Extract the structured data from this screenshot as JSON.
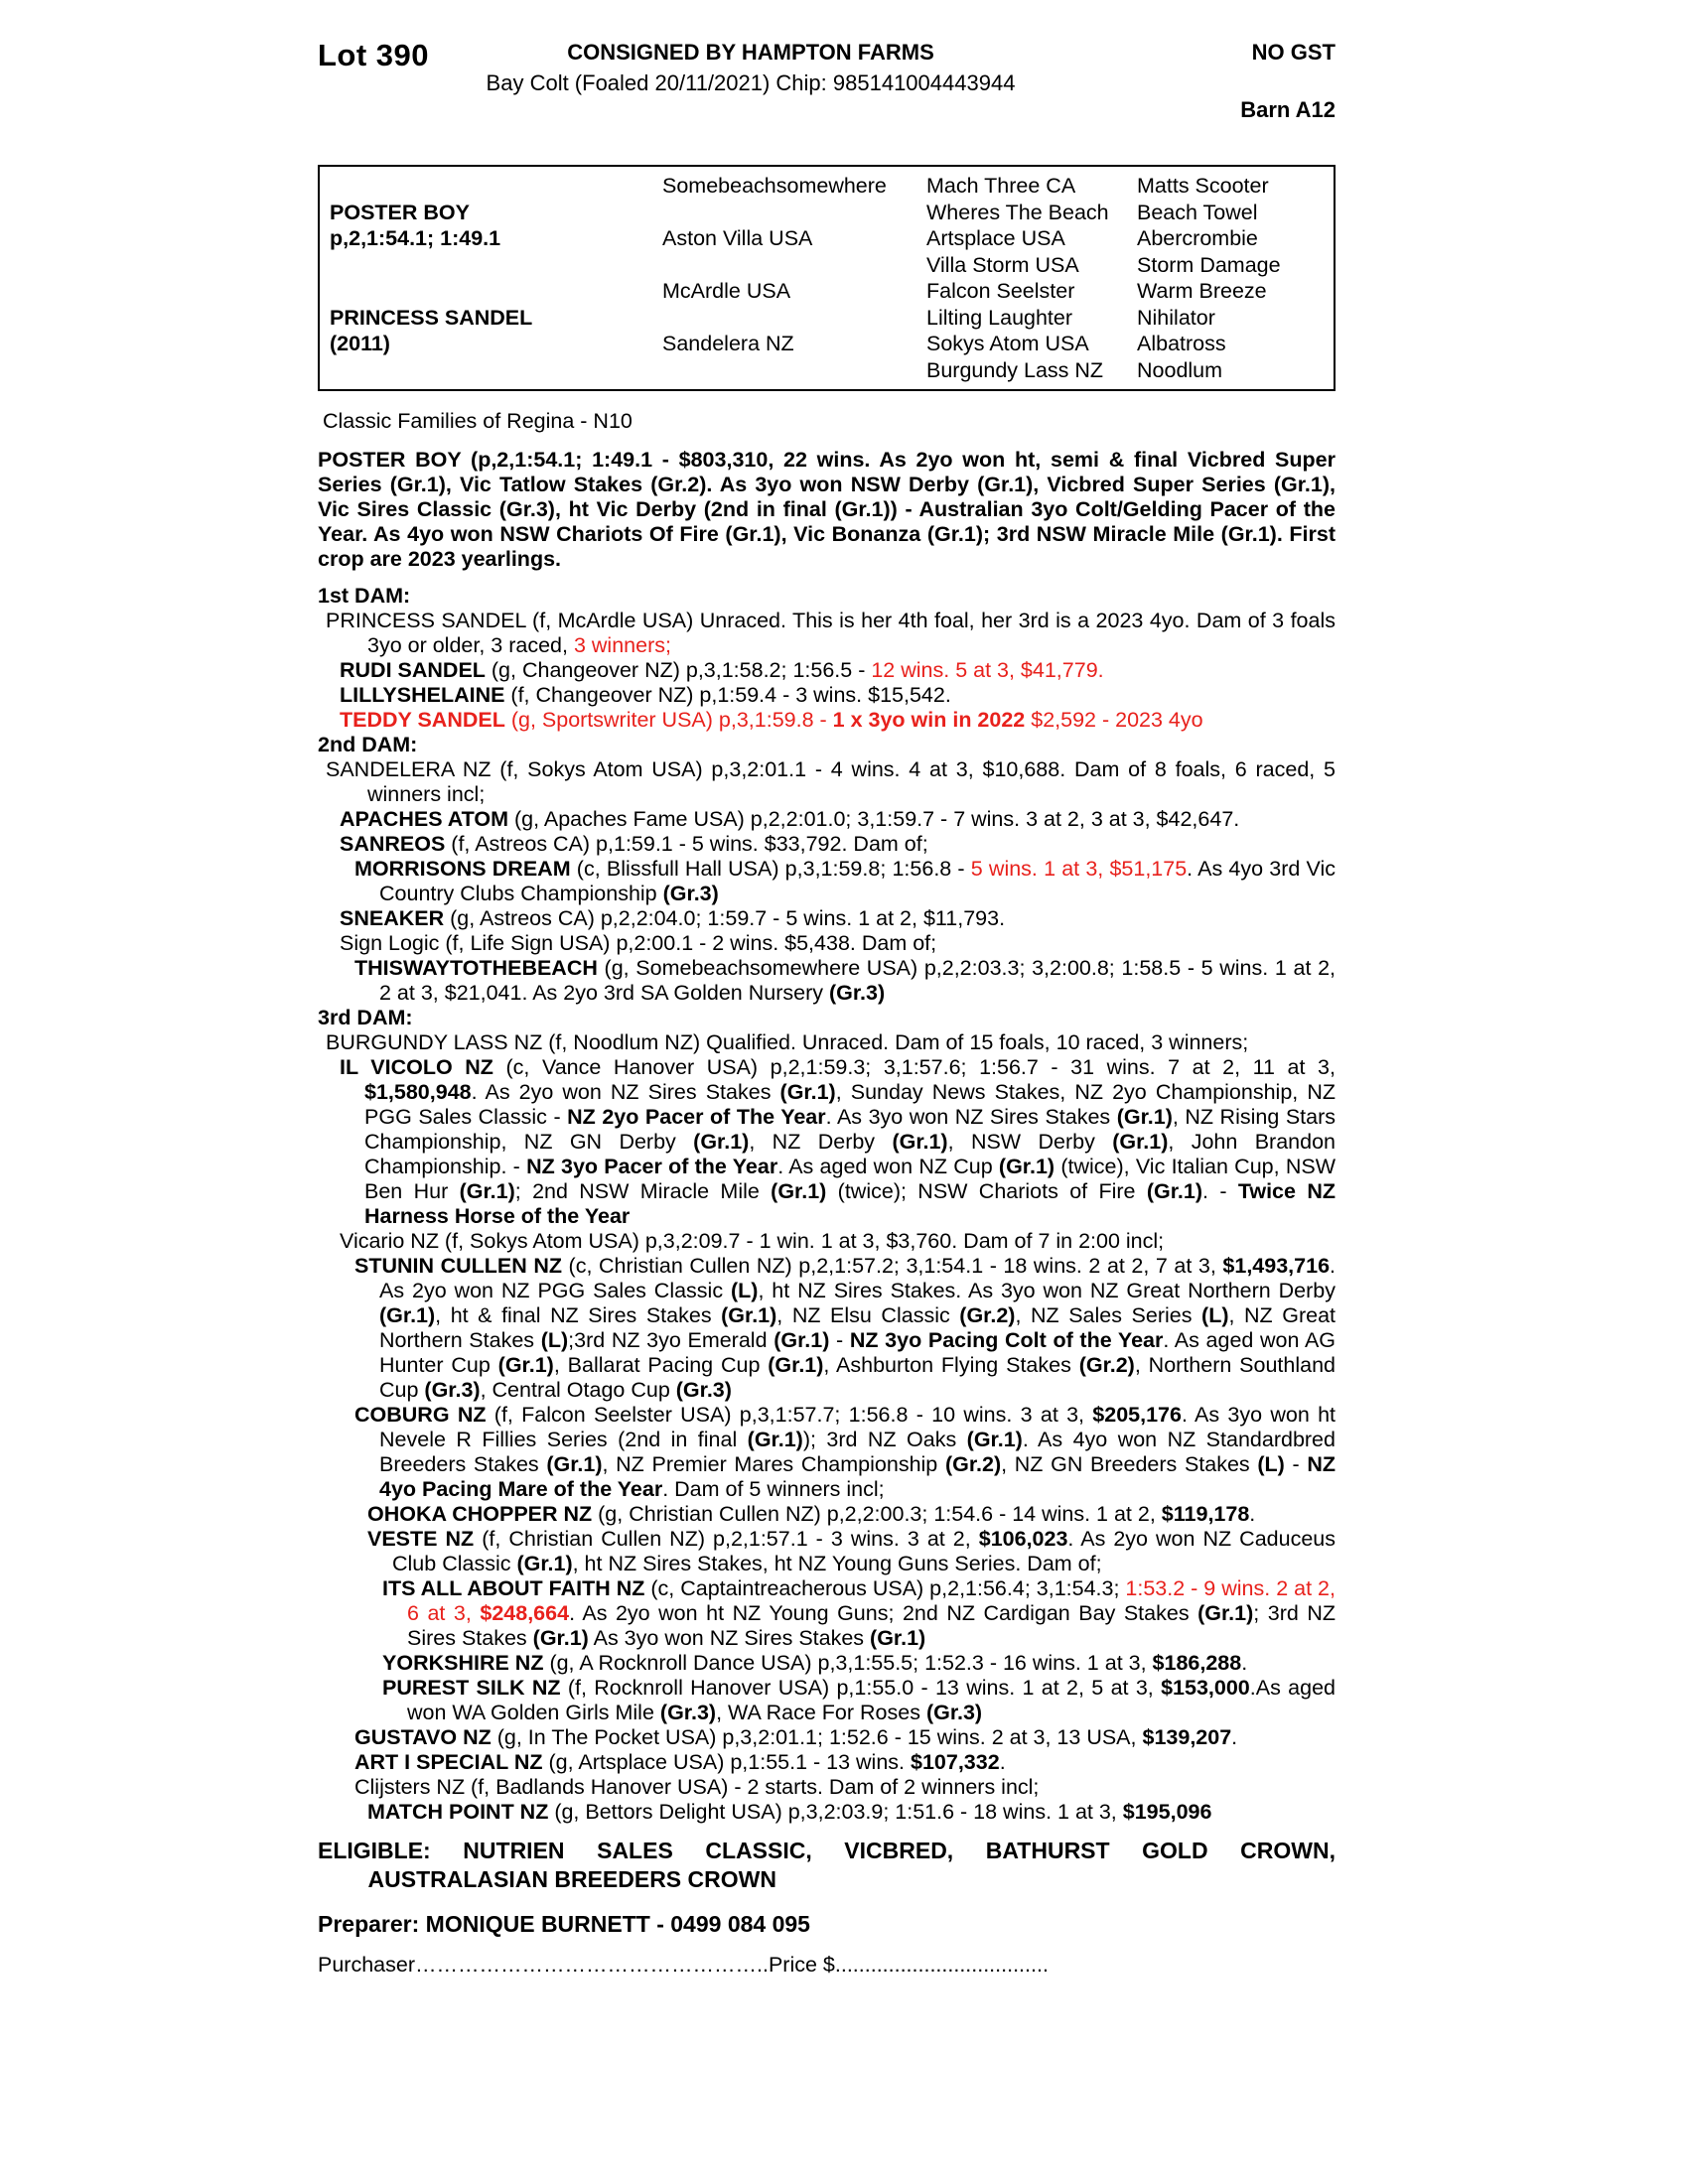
{
  "colors": {
    "red": "#e8211c"
  },
  "header": {
    "lot": "Lot 390",
    "consigned": "CONSIGNED BY HAMPTON FARMS",
    "no_gst": "NO GST",
    "foaled": "Bay Colt (Foaled 20/11/2021) Chip: 985141004443944",
    "barn": "Barn A12"
  },
  "pedigree": {
    "rows": [
      [
        "",
        "Somebeachsomewhere",
        "Mach Three CA",
        "Matts Scooter"
      ],
      [
        "POSTER BOY",
        "",
        "Wheres The Beach",
        "Beach Towel"
      ],
      [
        "p,2,1:54.1; 1:49.1",
        "Aston Villa USA",
        "Artsplace USA",
        "Abercrombie"
      ],
      [
        "",
        "",
        "Villa Storm USA",
        "Storm Damage"
      ],
      [
        "",
        "McArdle USA",
        "Falcon Seelster",
        "Warm Breeze"
      ],
      [
        "PRINCESS SANDEL",
        "",
        "Lilting Laughter",
        "Nihilator"
      ],
      [
        "(2011)",
        "Sandelera NZ",
        "Sokys Atom USA",
        "Albatross"
      ],
      [
        "",
        "",
        "Burgundy Lass NZ",
        "Noodlum"
      ]
    ]
  },
  "family_note": "Classic Families of Regina - N10",
  "sire_summary": "POSTER BOY (p,2,1:54.1; 1:49.1 - $803,310, 22 wins. As 2yo won ht, semi & final Vicbred Super Series (Gr.1), Vic Tatlow Stakes (Gr.2). As 3yo won NSW Derby (Gr.1), Vicbred Super Series (Gr.1), Vic Sires Classic (Gr.3), ht Vic Derby (2nd in final (Gr.1)) - Australian 3yo Colt/Gelding Pacer of the Year. As 4yo won NSW Chariots Of Fire (Gr.1), Vic Bonanza (Gr.1); 3rd NSW Miracle Mile (Gr.1). First crop are 2023 yearlings.",
  "dams": [
    {
      "heading": "1st DAM:",
      "entries": [
        {
          "indent": 1,
          "hang": 42,
          "segs": [
            {
              "t": "PRINCESS SANDEL (f, McArdle USA) Unraced. This is her 4th foal, her 3rd is a 2023 4yo. Dam of 3 foals 3yo or older, 3 raced, "
            },
            {
              "t": "3 winners;",
              "r": 1
            }
          ]
        },
        {
          "indent": 2,
          "segs": [
            {
              "t": "RUDI SANDEL",
              "b": 1
            },
            {
              "t": " (g, Changeover NZ) p,3,1:58.2; 1:56.5 - "
            },
            {
              "t": "12 wins. 5 at 3, $41,779.",
              "r": 1
            }
          ]
        },
        {
          "indent": 2,
          "segs": [
            {
              "t": "LILLYSHELAINE",
              "b": 1
            },
            {
              "t": " (f, Changeover NZ) p,1:59.4 - 3 wins. $15,542."
            }
          ]
        },
        {
          "indent": 2,
          "segs": [
            {
              "t": "TEDDY SANDEL",
              "b": 1,
              "r": 1
            },
            {
              "t": " (g, Sportswriter USA) p,3,1:59.8 - ",
              "r": 1
            },
            {
              "t": "1 x 3yo win in 2022",
              "b": 1,
              "r": 1
            },
            {
              "t": " $2,592 - 2023 4yo",
              "r": 1
            }
          ]
        }
      ]
    },
    {
      "heading": "2nd DAM:",
      "entries": [
        {
          "indent": 1,
          "hang": 42,
          "segs": [
            {
              "t": "SANDELERA NZ (f, Sokys Atom USA) p,3,2:01.1 - 4 wins. 4 at 3, $10,688. Dam of 8 foals, 6 raced, 5 winners incl;"
            }
          ]
        },
        {
          "indent": 2,
          "segs": [
            {
              "t": "APACHES ATOM",
              "b": 1
            },
            {
              "t": " (g, Apaches Fame USA) p,2,2:01.0; 3,1:59.7 - 7 wins. 3 at 2, 3 at 3, $42,647."
            }
          ]
        },
        {
          "indent": 2,
          "segs": [
            {
              "t": "SANREOS",
              "b": 1
            },
            {
              "t": " (f, Astreos CA) p,1:59.1 - 5 wins. $33,792. Dam of;"
            }
          ]
        },
        {
          "indent": 3,
          "segs": [
            {
              "t": "MORRISONS DREAM",
              "b": 1
            },
            {
              "t": " (c, Blissfull Hall USA) p,3,1:59.8; 1:56.8 - "
            },
            {
              "t": "5 wins. 1 at 3, $51,175",
              "r": 1
            },
            {
              "t": ". As 4yo 3rd Vic Country Clubs Championship "
            },
            {
              "t": "(Gr.3)",
              "b": 1
            }
          ]
        },
        {
          "indent": 2,
          "segs": [
            {
              "t": "SNEAKER",
              "b": 1
            },
            {
              "t": " (g, Astreos CA) p,2,2:04.0; 1:59.7 - 5 wins. 1 at 2, $11,793."
            }
          ]
        },
        {
          "indent": 2,
          "segs": [
            {
              "t": "Sign Logic (f, Life Sign USA) p,2:00.1 - 2 wins. $5,438. Dam of;"
            }
          ]
        },
        {
          "indent": 3,
          "segs": [
            {
              "t": "THISWAYTOTHEBEACH",
              "b": 1
            },
            {
              "t": " (g, Somebeachsomewhere USA) p,2,2:03.3; 3,2:00.8; 1:58.5 - 5 wins. 1 at 2, 2 at 3, $21,041. As 2yo 3rd SA Golden Nursery "
            },
            {
              "t": "(Gr.3)",
              "b": 1
            }
          ]
        }
      ]
    },
    {
      "heading": "3rd DAM:",
      "entries": [
        {
          "indent": 1,
          "hang": 42,
          "segs": [
            {
              "t": "BURGUNDY LASS NZ (f, Noodlum NZ) Qualified. Unraced. Dam of 15 foals, 10 raced, 3 winners;"
            }
          ]
        },
        {
          "indent": 2,
          "segs": [
            {
              "t": "IL VICOLO NZ",
              "b": 1
            },
            {
              "t": " (c, Vance Hanover USA) p,2,1:59.3; 3,1:57.6; 1:56.7 - 31 wins. 7 at 2, 11 at 3, "
            },
            {
              "t": "$1,580,948",
              "b": 1
            },
            {
              "t": ". As 2yo won NZ Sires Stakes "
            },
            {
              "t": "(Gr.1)",
              "b": 1
            },
            {
              "t": ", Sunday News Stakes, NZ 2yo Championship, NZ PGG Sales Classic - "
            },
            {
              "t": "NZ 2yo Pacer of The Year",
              "b": 1
            },
            {
              "t": ". As 3yo won NZ Sires Stakes "
            },
            {
              "t": "(Gr.1)",
              "b": 1
            },
            {
              "t": ", NZ Rising Stars Championship, NZ GN Derby "
            },
            {
              "t": "(Gr.1)",
              "b": 1
            },
            {
              "t": ", NZ Derby "
            },
            {
              "t": "(Gr.1)",
              "b": 1
            },
            {
              "t": ", NSW Derby "
            },
            {
              "t": "(Gr.1)",
              "b": 1
            },
            {
              "t": ", John Brandon Championship. - "
            },
            {
              "t": "NZ 3yo Pacer of the Year",
              "b": 1
            },
            {
              "t": ". As aged won NZ Cup "
            },
            {
              "t": "(Gr.1)",
              "b": 1
            },
            {
              "t": " (twice), Vic Italian Cup, NSW Ben Hur "
            },
            {
              "t": "(Gr.1)",
              "b": 1
            },
            {
              "t": "; 2nd NSW Miracle Mile "
            },
            {
              "t": "(Gr.1)",
              "b": 1
            },
            {
              "t": " (twice); NSW Chariots of Fire "
            },
            {
              "t": "(Gr.1)",
              "b": 1
            },
            {
              "t": ". - "
            },
            {
              "t": "Twice NZ Harness Horse of the Year",
              "b": 1
            }
          ]
        },
        {
          "indent": 2,
          "segs": [
            {
              "t": "Vicario NZ (f, Sokys Atom USA) p,3,2:09.7 - 1 win. 1 at 3, $3,760. Dam of 7 in 2:00 incl;"
            }
          ]
        },
        {
          "indent": 3,
          "segs": [
            {
              "t": "STUNIN CULLEN NZ",
              "b": 1
            },
            {
              "t": " (c, Christian Cullen NZ) p,2,1:57.2; 3,1:54.1 - 18 wins. 2 at 2, 7 at 3, "
            },
            {
              "t": "$1,493,716",
              "b": 1
            },
            {
              "t": ". As 2yo won NZ PGG Sales Classic "
            },
            {
              "t": "(L)",
              "b": 1
            },
            {
              "t": ", ht NZ Sires Stakes. As 3yo won NZ Great Northern Derby "
            },
            {
              "t": "(Gr.1)",
              "b": 1
            },
            {
              "t": ", ht & final NZ Sires Stakes "
            },
            {
              "t": "(Gr.1)",
              "b": 1
            },
            {
              "t": ", NZ Elsu Classic "
            },
            {
              "t": "(Gr.2)",
              "b": 1
            },
            {
              "t": ", NZ Sales Series "
            },
            {
              "t": "(L)",
              "b": 1
            },
            {
              "t": ", NZ Great Northern Stakes "
            },
            {
              "t": "(L)",
              "b": 1
            },
            {
              "t": ";3rd NZ 3yo Emerald "
            },
            {
              "t": "(Gr.1)",
              "b": 1
            },
            {
              "t": " - "
            },
            {
              "t": "NZ 3yo Pacing Colt of the Year",
              "b": 1
            },
            {
              "t": ". As aged won AG Hunter Cup "
            },
            {
              "t": "(Gr.1)",
              "b": 1
            },
            {
              "t": ", Ballarat Pacing Cup "
            },
            {
              "t": "(Gr.1)",
              "b": 1
            },
            {
              "t": ", Ashburton Flying Stakes "
            },
            {
              "t": "(Gr.2)",
              "b": 1
            },
            {
              "t": ", Northern Southland Cup "
            },
            {
              "t": "(Gr.3)",
              "b": 1
            },
            {
              "t": ", Central Otago Cup "
            },
            {
              "t": "(Gr.3)",
              "b": 1
            }
          ]
        },
        {
          "indent": 3,
          "segs": [
            {
              "t": "COBURG NZ",
              "b": 1
            },
            {
              "t": " (f, Falcon Seelster USA) p,3,1:57.7; 1:56.8 - 10 wins. 3 at 3, "
            },
            {
              "t": "$205,176",
              "b": 1
            },
            {
              "t": ". As 3yo won ht Nevele R Fillies Series (2nd in final "
            },
            {
              "t": "(Gr.1)",
              "b": 1
            },
            {
              "t": "); 3rd NZ Oaks "
            },
            {
              "t": "(Gr.1)",
              "b": 1
            },
            {
              "t": ". As 4yo won NZ Standardbred Breeders Stakes "
            },
            {
              "t": "(Gr.1)",
              "b": 1
            },
            {
              "t": ", NZ Premier Mares Championship "
            },
            {
              "t": "(Gr.2)",
              "b": 1
            },
            {
              "t": ", NZ GN Breeders Stakes "
            },
            {
              "t": "(L)",
              "b": 1
            },
            {
              "t": " - "
            },
            {
              "t": "NZ 4yo Pacing Mare of the Year",
              "b": 1
            },
            {
              "t": ". Dam of 5 winners incl;"
            }
          ]
        },
        {
          "indent": 4,
          "segs": [
            {
              "t": "OHOKA CHOPPER NZ",
              "b": 1
            },
            {
              "t": " (g, Christian Cullen NZ) p,2,2:00.3; 1:54.6 - 14 wins. 1 at 2, "
            },
            {
              "t": "$119,178",
              "b": 1
            },
            {
              "t": "."
            }
          ]
        },
        {
          "indent": 4,
          "segs": [
            {
              "t": "VESTE NZ",
              "b": 1
            },
            {
              "t": " (f, Christian Cullen NZ) p,2,1:57.1 - 3 wins. 3 at 2, "
            },
            {
              "t": "$106,023",
              "b": 1
            },
            {
              "t": ". As 2yo won NZ Caduceus Club Classic "
            },
            {
              "t": "(Gr.1)",
              "b": 1
            },
            {
              "t": ", ht NZ Sires Stakes, ht NZ Young Guns Series. Dam of;"
            }
          ]
        },
        {
          "indent": 5,
          "segs": [
            {
              "t": "ITS ALL ABOUT FAITH NZ",
              "b": 1
            },
            {
              "t": " (c, Captaintreacherous USA) p,2,1:56.4; 3,1:54.3; "
            },
            {
              "t": "1:53.2 - 9 wins. 2 at 2, 6 at 3, ",
              "r": 1
            },
            {
              "t": "$248,664",
              "b": 1,
              "r": 1
            },
            {
              "t": ". As 2yo won ht NZ Young Guns; 2nd NZ Cardigan Bay Stakes "
            },
            {
              "t": "(Gr.1)",
              "b": 1
            },
            {
              "t": "; 3rd NZ Sires Stakes "
            },
            {
              "t": "(Gr.1)",
              "b": 1
            },
            {
              "t": " As 3yo won NZ Sires Stakes "
            },
            {
              "t": "(Gr.1)",
              "b": 1
            }
          ]
        },
        {
          "indent": 5,
          "segs": [
            {
              "t": "YORKSHIRE NZ",
              "b": 1
            },
            {
              "t": " (g, A Rocknroll Dance USA) p,3,1:55.5; 1:52.3 - 16 wins. 1 at 3, "
            },
            {
              "t": "$186,288",
              "b": 1
            },
            {
              "t": "."
            }
          ]
        },
        {
          "indent": 5,
          "segs": [
            {
              "t": "PUREST SILK NZ",
              "b": 1
            },
            {
              "t": " (f, Rocknroll Hanover USA) p,1:55.0 - 13 wins. 1 at 2, 5 at 3, "
            },
            {
              "t": "$153,000",
              "b": 1
            },
            {
              "t": ".As aged won WA Golden Girls Mile "
            },
            {
              "t": "(Gr.3)",
              "b": 1
            },
            {
              "t": ", WA Race For Roses "
            },
            {
              "t": "(Gr.3)",
              "b": 1
            }
          ]
        },
        {
          "indent": 3,
          "segs": [
            {
              "t": "GUSTAVO NZ",
              "b": 1
            },
            {
              "t": " (g, In The Pocket USA) p,3,2:01.1; 1:52.6 - 15 wins. 2 at 3, 13 USA, "
            },
            {
              "t": "$139,207",
              "b": 1
            },
            {
              "t": "."
            }
          ]
        },
        {
          "indent": 3,
          "segs": [
            {
              "t": "ART I SPECIAL NZ",
              "b": 1
            },
            {
              "t": " (g, Artsplace USA) p,1:55.1 - 13 wins. "
            },
            {
              "t": "$107,332",
              "b": 1
            },
            {
              "t": "."
            }
          ]
        },
        {
          "indent": 3,
          "segs": [
            {
              "t": "Clijsters NZ (f, Badlands Hanover USA) - 2 starts. Dam of 2 winners incl;"
            }
          ]
        },
        {
          "indent": 4,
          "segs": [
            {
              "t": "MATCH POINT NZ",
              "b": 1
            },
            {
              "t": " (g, Bettors Delight USA) p,3,2:03.9; 1:51.6 - 18 wins. 1 at 3, "
            },
            {
              "t": "$195,096",
              "b": 1
            }
          ]
        }
      ]
    }
  ],
  "eligible": {
    "line1": "ELIGIBLE: NUTRIEN SALES CLASSIC, VICBRED, BATHURST GOLD CROWN,",
    "line2": "AUSTRALASIAN BREEDERS CROWN"
  },
  "preparer": "Preparer: MONIQUE BURNETT - 0499 084 095",
  "purchaser": {
    "label": "Purchaser",
    "dots1": "…………………………………………..",
    "price_label": "Price $",
    "dots2": "...................................."
  }
}
